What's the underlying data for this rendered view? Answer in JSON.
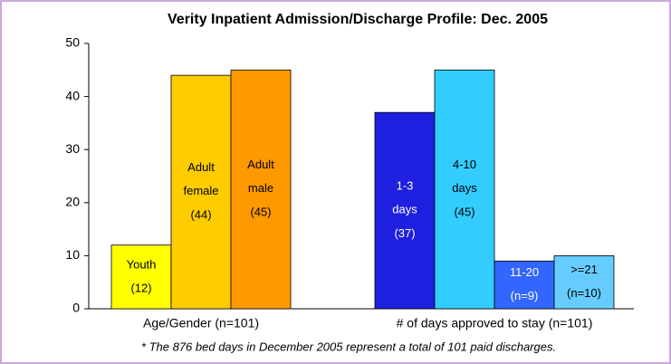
{
  "chart_data": {
    "type": "bar",
    "title": "Verity Inpatient Admission/Discharge Profile: Dec. 2005",
    "footnote": "* The 876 bed days in December 2005 represent a total of 101 paid discharges.",
    "ylim": [
      0,
      50
    ],
    "yticks": [
      0,
      10,
      20,
      30,
      40,
      50
    ],
    "groups": [
      {
        "label": "Age/Gender (n=101)",
        "categories": [
          "Youth",
          "Adult female",
          "Adult male"
        ],
        "values": [
          12,
          44,
          45
        ],
        "value_labels": [
          "(12)",
          "(44)",
          "(45)"
        ],
        "colors": [
          "#ffff00",
          "#ffcc00",
          "#ff9900"
        ]
      },
      {
        "label": "# of days approved to stay (n=101)",
        "categories": [
          "1-3 days",
          "4-10 days",
          "11-20",
          ">=21"
        ],
        "values": [
          37,
          45,
          9,
          10
        ],
        "value_labels": [
          "(37)",
          "(45)",
          "(n=9)",
          "(n=10)"
        ],
        "colors": [
          "#1f1fe0",
          "#33ccff",
          "#3366ff",
          "#66ccff"
        ]
      }
    ]
  }
}
